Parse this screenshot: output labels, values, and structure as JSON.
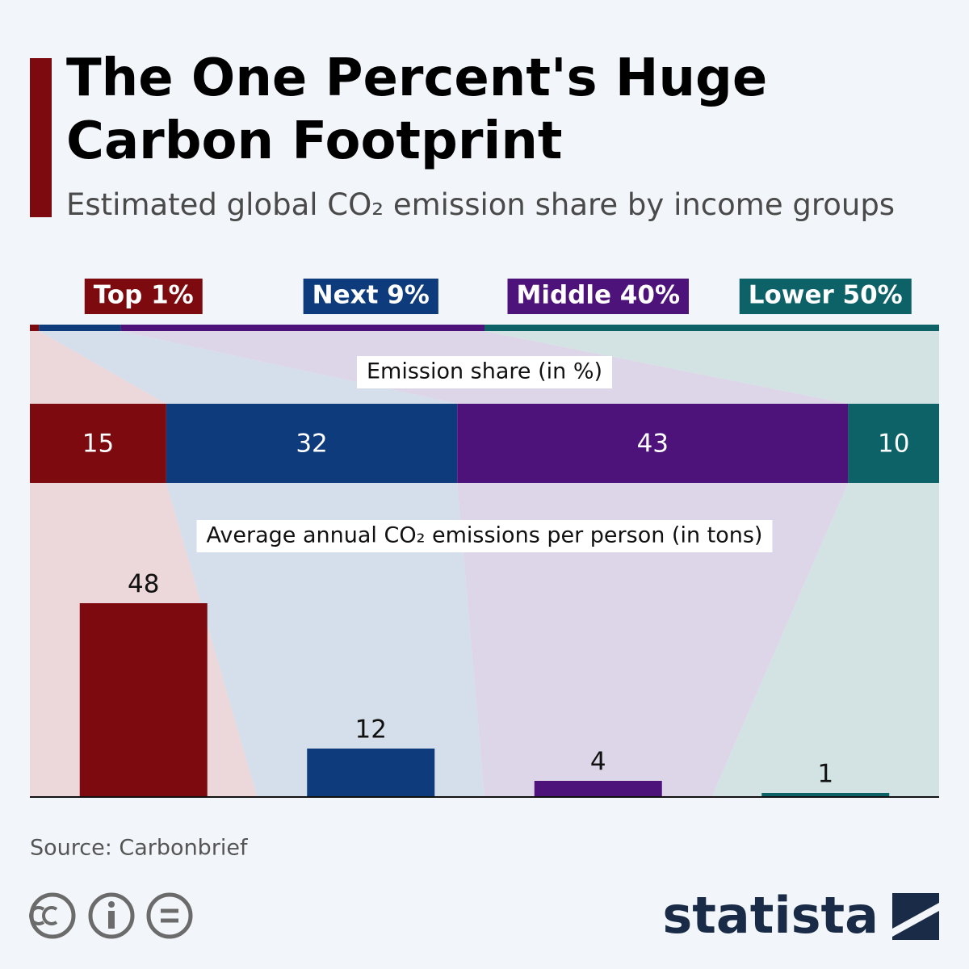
{
  "chart_data": {
    "type": "funnel-bar",
    "title": "The One Percent's Huge Carbon Footprint",
    "subtitle": "Estimated global CO₂ emission share by income groups",
    "categories": [
      "Top 1%",
      "Next 9%",
      "Middle 40%",
      "Lower 50%"
    ],
    "colors": [
      "#7d0a0e",
      "#0e3b7b",
      "#4e137a",
      "#0d6268"
    ],
    "population_share": [
      1,
      9,
      40,
      50
    ],
    "emission_share_label": "Emission share (in %)",
    "emission_share": [
      15,
      32,
      43,
      10
    ],
    "per_person_label": "Average annual CO₂ emissions per person (in tons)",
    "per_person": [
      48,
      12,
      4,
      1
    ],
    "source": "Source: Carbonbrief",
    "brand": "statista"
  }
}
